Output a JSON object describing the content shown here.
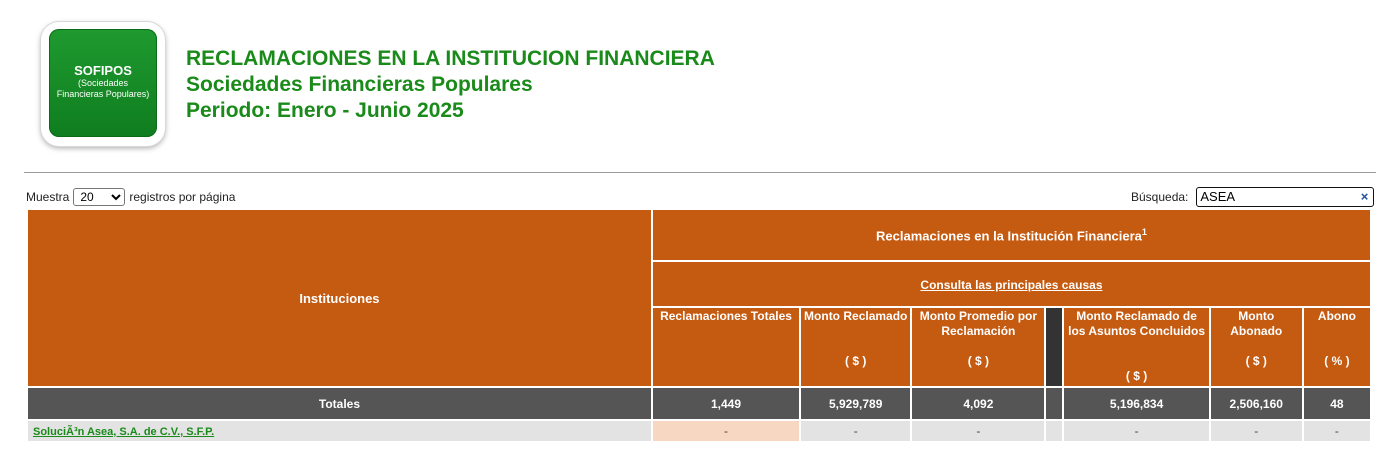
{
  "logo": {
    "title": "SOFIPOS",
    "subtitle_line1": "(Sociedades",
    "subtitle_line2": "Financieras Populares)"
  },
  "heading": {
    "line1": "RECLAMACIONES EN LA INSTITUCION FINANCIERA",
    "line2": "Sociedades Financieras Populares",
    "line3": "Periodo: Enero - Junio 2025"
  },
  "controls": {
    "show_label": "Muestra",
    "per_page_value": "20",
    "per_page_suffix": "registros por página",
    "search_label": "Búsqueda:",
    "search_value": "ASEA",
    "clear_glyph": "×"
  },
  "table": {
    "institutions_header": "Instituciones",
    "group_header": "Reclamaciones en la Institución Financiera",
    "group_footnote": "1",
    "causes_link": "Consulta las principales causas",
    "columns": [
      {
        "label": "Reclamaciones Totales",
        "unit": ""
      },
      {
        "label": "Monto Reclamado",
        "unit": "( $ )"
      },
      {
        "label": "Monto Promedio por Reclamación",
        "unit": "( $ )"
      },
      {
        "label": "Monto Reclamado de los Asuntos Concluidos",
        "unit": "( $ )"
      },
      {
        "label": "Monto Abonado",
        "unit": "( $ )"
      },
      {
        "label": "Abono",
        "unit": "( % )"
      }
    ],
    "totals": {
      "label": "Totales",
      "values": [
        "1,449",
        "5,929,789",
        "4,092",
        "5,196,834",
        "2,506,160",
        "48"
      ]
    },
    "rows": [
      {
        "name": "SoluciÃ³n Asea, S.A. de C.V., S.F.P.",
        "values": [
          "-",
          "-",
          "-",
          "-",
          "-",
          "-"
        ]
      }
    ]
  },
  "colors": {
    "header_orange": "#c55a11",
    "totals_gray": "#555555",
    "row_gray": "#e3e3e3",
    "highlight_peach": "#f8d7c2",
    "brand_green": "#1a8a1a"
  }
}
